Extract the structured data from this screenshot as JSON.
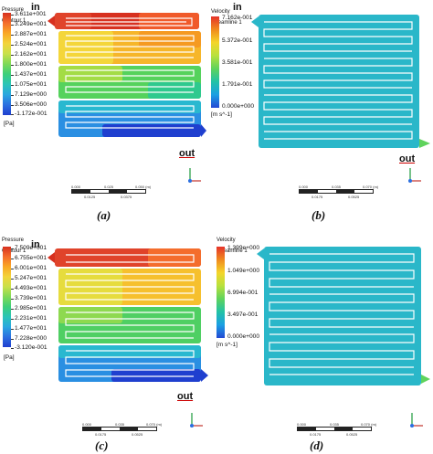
{
  "panels": [
    {
      "legend": {
        "title_line1": "Pressure",
        "title_line2": "Contour 1",
        "ticks": [
          "3.611e+001",
          "3.249e+001",
          "2.887e+001",
          "2.524e+001",
          "2.162e+001",
          "1.800e+001",
          "1.437e+001",
          "1.075e+001",
          "7.129e+000",
          "3.506e+000",
          "-1.172e-001"
        ],
        "units": "[Pa]"
      },
      "inlet_label": "in",
      "outlet_label": "out",
      "caption": "(a)",
      "scale_labels": [
        "0.000",
        "0.025",
        "0.050 (m)",
        "0.0125",
        "0.0375"
      ]
    },
    {
      "legend": {
        "title_line1": "Velocity",
        "title_line2": "Streamline 1",
        "ticks": [
          "7.162e-001",
          "5.372e-001",
          "3.581e-001",
          "1.791e-001",
          "0.000e+000"
        ],
        "units": "[m s^-1]"
      },
      "inlet_label": "in",
      "outlet_label": "out",
      "caption": "(b)",
      "scale_labels": [
        "0.000",
        "0.035",
        "0.070 (m)",
        "0.0175",
        "0.0525"
      ]
    },
    {
      "legend": {
        "title_line1": "Pressure",
        "title_line2": "Contour 1",
        "ticks": [
          "7.509e+001",
          "6.755e+001",
          "6.001e+001",
          "5.247e+001",
          "4.493e+001",
          "3.739e+001",
          "2.985e+001",
          "2.231e+001",
          "1.477e+001",
          "7.228e+000",
          "-3.120e-001"
        ],
        "units": "[Pa]"
      },
      "inlet_label": "in",
      "outlet_label": "out",
      "caption": "(c)",
      "scale_labels": [
        "0.000",
        "0.035",
        "0.070 (m)",
        "0.0175",
        "0.0525"
      ]
    },
    {
      "legend": {
        "title_line1": "Velocity",
        "title_line2": "Streamline 1",
        "ticks": [
          "1.399e+000",
          "1.049e+000",
          "6.994e-001",
          "3.497e-001",
          "0.000e+000"
        ],
        "units": "[m s^-1]"
      },
      "inlet_label": "in",
      "outlet_label": "out",
      "caption": "(d)",
      "scale_labels": [
        "0.000",
        "0.035",
        "0.070 (m)",
        "0.0175",
        "0.0525"
      ]
    }
  ],
  "colors": {
    "pressure_scale": [
      "#d7301f",
      "#f46d2c",
      "#f9a825",
      "#f2d43a",
      "#c8e04a",
      "#7ed957",
      "#3ccf7a",
      "#2bc4b8",
      "#2aa6e0",
      "#2b6fe0",
      "#1f3fcf"
    ],
    "velocity_scale": [
      "#e5332a",
      "#f08a1e",
      "#f4d52a",
      "#b8e13d",
      "#5fd35c",
      "#22c2a6",
      "#1b9fe3",
      "#2349d4"
    ],
    "streamline_channel": "#2ab7c9",
    "streamline_line": "#ffffff"
  },
  "icons": [
    "inlet-arrow-icon",
    "outlet-arrow-icon",
    "axis-triad-icon"
  ]
}
